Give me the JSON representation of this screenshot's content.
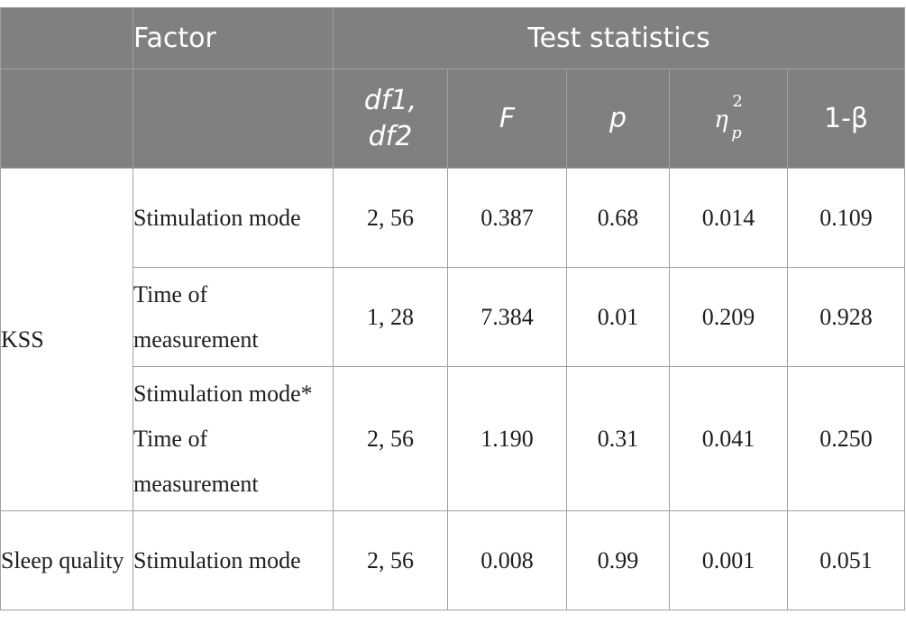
{
  "header": {
    "factor": "Factor",
    "test_statistics": "Test statistics",
    "df": "df1, df2",
    "f": "F",
    "p": "p",
    "eta_symbol": "η",
    "eta_sup": "2",
    "eta_sub": "p",
    "power": "1-β"
  },
  "rows": [
    {
      "group": "KSS",
      "factor": "Stimulation mode",
      "df": "2, 56",
      "f": "0.387",
      "p": "0.68",
      "eta": "0.014",
      "power": "0.109"
    },
    {
      "factor": "Time of measurement",
      "df": "1, 28",
      "f": "7.384",
      "p": "0.01",
      "eta": "0.209",
      "power": "0.928"
    },
    {
      "factor": "Stimulation mode* Time of measurement",
      "df": "2, 56",
      "f": "1.190",
      "p": "0.31",
      "eta": "0.041",
      "power": "0.250"
    },
    {
      "group": "Sleep quality",
      "factor": "Stimulation mode",
      "df": "2, 56",
      "f": "0.008",
      "p": "0.99",
      "eta": "0.001",
      "power": "0.051"
    }
  ]
}
